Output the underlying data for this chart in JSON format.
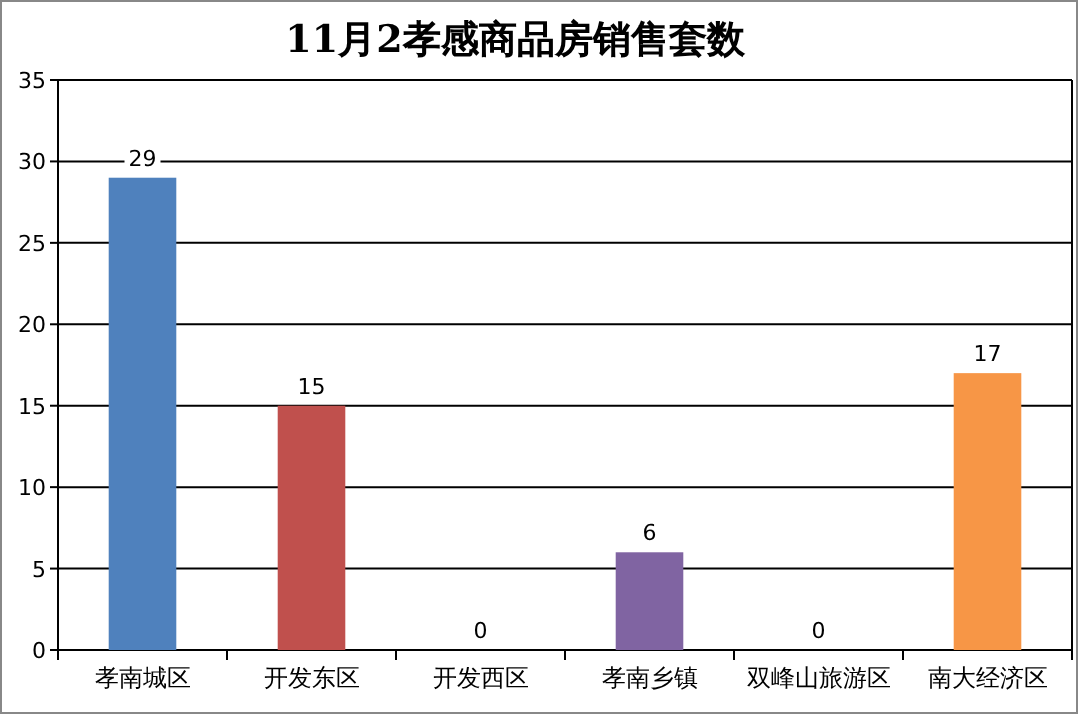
{
  "chart_data": {
    "type": "bar",
    "title": "11月2孝感商品房销售套数",
    "categories": [
      "孝南城区",
      "开发东区",
      "开发西区",
      "孝南乡镇",
      "双峰山旅游区",
      "南大经济区"
    ],
    "values": [
      29,
      15,
      0,
      6,
      0,
      17
    ],
    "colors": [
      "#4f81bd",
      "#c0504d",
      "#9bbb59",
      "#8064a2",
      "#4bacc6",
      "#f79646"
    ],
    "ylim": [
      0,
      35
    ],
    "yticks": [
      0,
      5,
      10,
      15,
      20,
      25,
      30,
      35
    ],
    "grid": "y",
    "data_labels": true
  }
}
